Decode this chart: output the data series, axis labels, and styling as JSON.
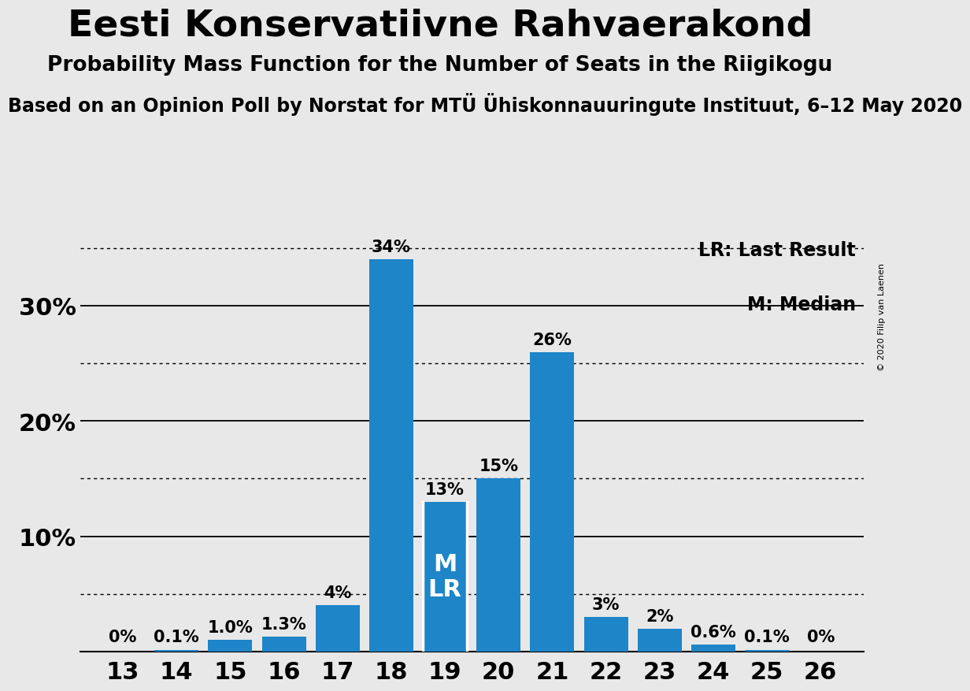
{
  "title": "Eesti Konservatiivne Rahvaerakond",
  "subtitle": "Probability Mass Function for the Number of Seats in the Riigikogu",
  "source_line": "Based on an Opinion Poll by Norstat for MTÜ Ühiskonnauuringute Instituut, 6–12 May 2020",
  "copyright": "© 2020 Filip van Laenen",
  "seats": [
    13,
    14,
    15,
    16,
    17,
    18,
    19,
    20,
    21,
    22,
    23,
    24,
    25,
    26
  ],
  "probabilities": [
    0.0,
    0.1,
    1.0,
    1.3,
    4.0,
    34.0,
    13.0,
    15.0,
    26.0,
    3.0,
    2.0,
    0.6,
    0.1,
    0.0
  ],
  "labels": [
    "0%",
    "0.1%",
    "1.0%",
    "1.3%",
    "4%",
    "34%",
    "13%",
    "15%",
    "26%",
    "3%",
    "2%",
    "0.6%",
    "0.1%",
    "0%"
  ],
  "bar_color": "#1E86C8",
  "background_color": "#E8E8E8",
  "median_seat": 19,
  "last_result_seat": 19,
  "legend_lr": "LR: Last Result",
  "legend_m": "M: Median",
  "ylim": [
    0,
    36
  ],
  "solid_grid_values": [
    10,
    20,
    30
  ],
  "dotted_grid_values": [
    5,
    15,
    25,
    35
  ],
  "ytick_positions": [
    10,
    20,
    30
  ],
  "ytick_labels": [
    "10%",
    "20%",
    "30%"
  ],
  "title_fontsize": 34,
  "subtitle_fontsize": 19,
  "source_fontsize": 17,
  "bar_label_fontsize": 15,
  "axis_label_fontsize": 22,
  "legend_fontsize": 17,
  "ml_label_fontsize": 22,
  "bar_width": 0.82
}
